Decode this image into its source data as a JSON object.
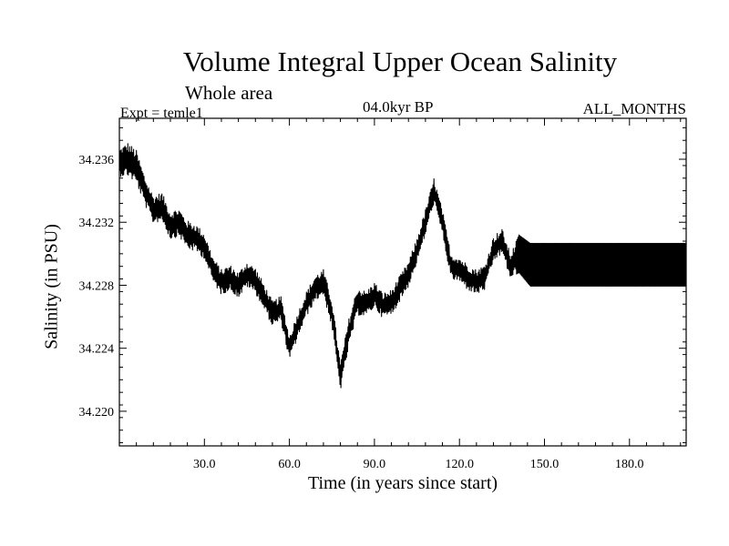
{
  "chart_data": {
    "type": "line",
    "title": "Volume Integral Upper Ocean Salinity",
    "subtitle": "Whole area",
    "left_label": "Expt = temle1",
    "center_label": "04.0kyr BP",
    "right_label": "ALL_MONTHS",
    "xlabel": "Time (in years since start)",
    "ylabel": "Salinity (in PSU)",
    "xlim": [
      0,
      200
    ],
    "ylim": [
      34.2178,
      34.2386
    ],
    "xticks": [
      30.0,
      60.0,
      90.0,
      120.0,
      150.0,
      180.0
    ],
    "xtick_labels": [
      "30.0",
      "60.0",
      "90.0",
      "120.0",
      "150.0",
      "180.0"
    ],
    "yticks": [
      34.22,
      34.224,
      34.228,
      34.232,
      34.236
    ],
    "ytick_labels": [
      "34.220",
      "34.224",
      "34.228",
      "34.232",
      "34.236"
    ],
    "grid": false,
    "series": [
      {
        "name": "Salinity",
        "style": "monthly series, annual-trend values estimated from the figure",
        "x": [
          0,
          3,
          6,
          9,
          12,
          15,
          18,
          21,
          24,
          27,
          30,
          33,
          36,
          39,
          42,
          45,
          48,
          51,
          54,
          57,
          60,
          63,
          66,
          69,
          72,
          75,
          78,
          81,
          84,
          87,
          90,
          93,
          96,
          99,
          102,
          105,
          108,
          111,
          114,
          117,
          120,
          123,
          126,
          129,
          132,
          135,
          138,
          141,
          145,
          150,
          155,
          160,
          165,
          170,
          175,
          180,
          185,
          190,
          195,
          200
        ],
        "y": [
          34.2358,
          34.236,
          34.2355,
          34.234,
          34.2328,
          34.233,
          34.2318,
          34.232,
          34.2312,
          34.231,
          34.2305,
          34.229,
          34.2282,
          34.2285,
          34.228,
          34.2287,
          34.2283,
          34.2273,
          34.2262,
          34.2265,
          34.224,
          34.2255,
          34.2268,
          34.2278,
          34.2282,
          34.2262,
          34.2222,
          34.225,
          34.227,
          34.2268,
          34.2274,
          34.2267,
          34.2269,
          34.2278,
          34.2287,
          34.2302,
          34.232,
          34.234,
          34.232,
          34.2292,
          34.229,
          34.2285,
          34.2282,
          34.2285,
          34.2303,
          34.2308,
          34.2292,
          34.23,
          34.2293,
          34.2293,
          34.2293,
          34.2293,
          34.2293,
          34.2293,
          34.2293,
          34.2293,
          34.2293,
          34.2293,
          34.2293,
          34.2293
        ],
        "noise_amplitude": [
          0.001,
          0.0012,
          0.0012,
          0.001,
          0.001,
          0.001,
          0.001,
          0.001,
          0.001,
          0.001,
          0.0009,
          0.0009,
          0.0009,
          0.0009,
          0.0009,
          0.0009,
          0.0009,
          0.0009,
          0.0009,
          0.0009,
          0.0009,
          0.0009,
          0.0009,
          0.0009,
          0.0009,
          0.001,
          0.001,
          0.001,
          0.001,
          0.0009,
          0.0009,
          0.0009,
          0.0009,
          0.0009,
          0.0009,
          0.0009,
          0.0009,
          0.0009,
          0.0009,
          0.0009,
          0.0009,
          0.0009,
          0.0009,
          0.0009,
          0.0009,
          0.0009,
          0.0009,
          0.0014,
          0.0016,
          0.0016,
          0.0016,
          0.0016,
          0.0016,
          0.0016,
          0.0016,
          0.0016,
          0.0016,
          0.0016,
          0.0016,
          0.0016
        ]
      }
    ]
  },
  "colors": {
    "line": "#000000",
    "axes": "#000000",
    "background": "#ffffff"
  }
}
